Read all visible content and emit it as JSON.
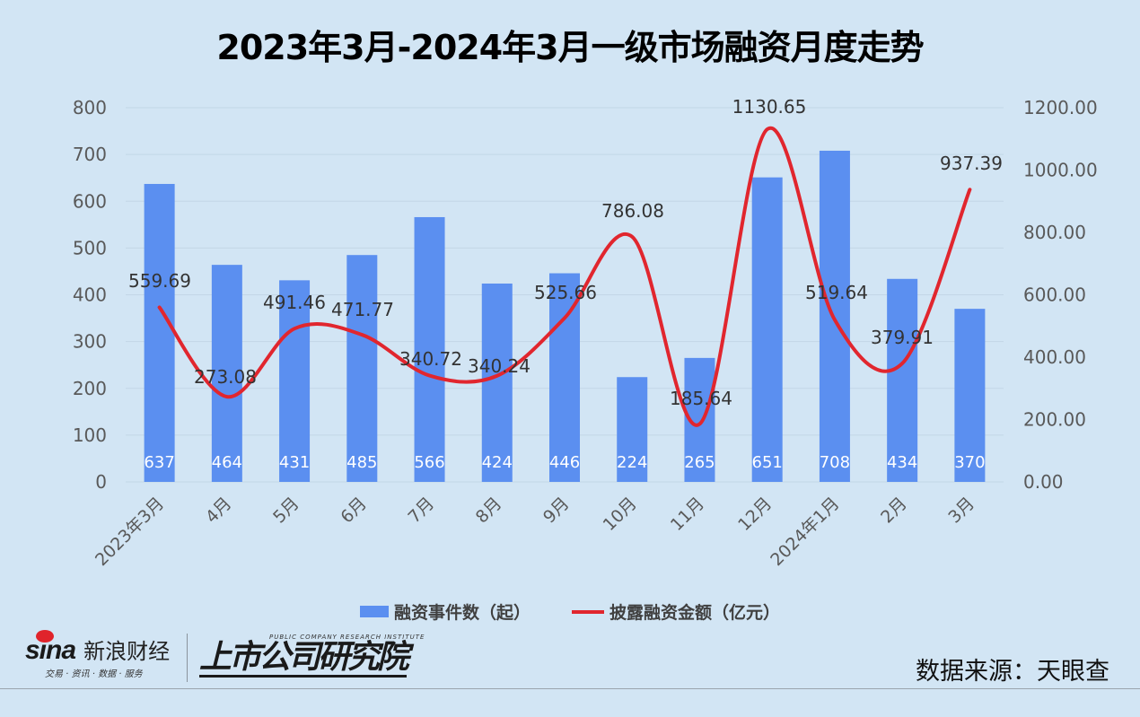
{
  "title": "2023年3月-2024年3月一级市场融资月度走势",
  "legend": {
    "bar_label": "融资事件数（起）",
    "line_label": "披露融资金额（亿元）"
  },
  "source": "数据来源：天眼查",
  "logos": {
    "sina_word": "sina",
    "sina_cn": "新浪财经",
    "sina_sub": "交易 · 资讯 · 数据 · 服务",
    "institute_en": "PUBLIC COMPANY RESEARCH INSTITUTE",
    "institute_cn": "上市公司研究院"
  },
  "colors": {
    "background": "#d2e5f4",
    "bar": "#5b8ff0",
    "line": "#e1262e",
    "grid": "#c3d6e6",
    "axis_text": "#595959",
    "label_text": "#333333"
  },
  "chart_data": {
    "type": "bar+line",
    "title": "2023年3月-2024年3月一级市场融资月度走势",
    "categories": [
      "2023年3月",
      "4月",
      "5月",
      "6月",
      "7月",
      "8月",
      "9月",
      "10月",
      "11月",
      "12月",
      "2024年1月",
      "2月",
      "3月"
    ],
    "series": [
      {
        "name": "融资事件数（起）",
        "type": "bar",
        "axis": "left",
        "values": [
          637,
          464,
          431,
          485,
          566,
          424,
          446,
          224,
          265,
          651,
          708,
          434,
          370
        ]
      },
      {
        "name": "披露融资金额（亿元）",
        "type": "line",
        "axis": "right",
        "smooth": true,
        "values": [
          559.69,
          273.08,
          491.46,
          471.77,
          340.72,
          340.24,
          525.66,
          786.08,
          185.64,
          1130.65,
          519.64,
          379.91,
          937.39
        ]
      }
    ],
    "left_axis": {
      "ylim": [
        0,
        800
      ],
      "ticks": [
        "0",
        "100",
        "200",
        "300",
        "400",
        "500",
        "600",
        "700",
        "800"
      ]
    },
    "right_axis": {
      "ylim": [
        0,
        1200
      ],
      "ticks": [
        "0.00",
        "200.00",
        "400.00",
        "600.00",
        "800.00",
        "1000.00",
        "1200.00"
      ]
    },
    "xlabel": "",
    "ylabel": "",
    "grid": true,
    "legend_position": "bottom"
  }
}
